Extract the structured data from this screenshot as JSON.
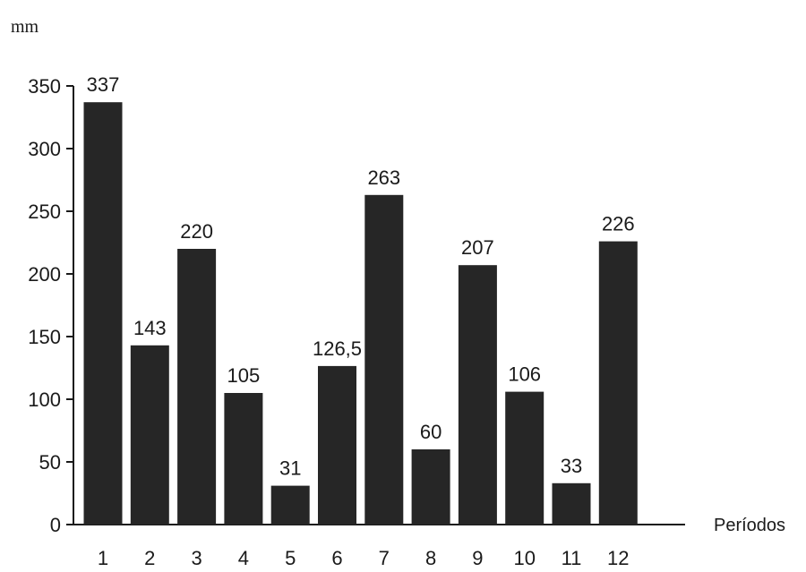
{
  "chart_data": {
    "type": "bar",
    "ylabel": "mm",
    "xlabel": "Períodos",
    "categories": [
      "1",
      "2",
      "3",
      "4",
      "5",
      "6",
      "7",
      "8",
      "9",
      "10",
      "11",
      "12"
    ],
    "values": [
      337,
      143,
      220,
      105,
      31,
      126.5,
      263,
      60,
      207,
      106,
      33,
      226
    ],
    "value_labels": [
      "337",
      "143",
      "220",
      "105",
      "31",
      "126,5",
      "263",
      "60",
      "207",
      "106",
      "33",
      "226"
    ],
    "y_ticks": [
      "0",
      "50",
      "100",
      "150",
      "200",
      "250",
      "300",
      "350"
    ],
    "ylim": [
      0,
      350
    ],
    "grid": false,
    "bar_color": "#262626"
  }
}
